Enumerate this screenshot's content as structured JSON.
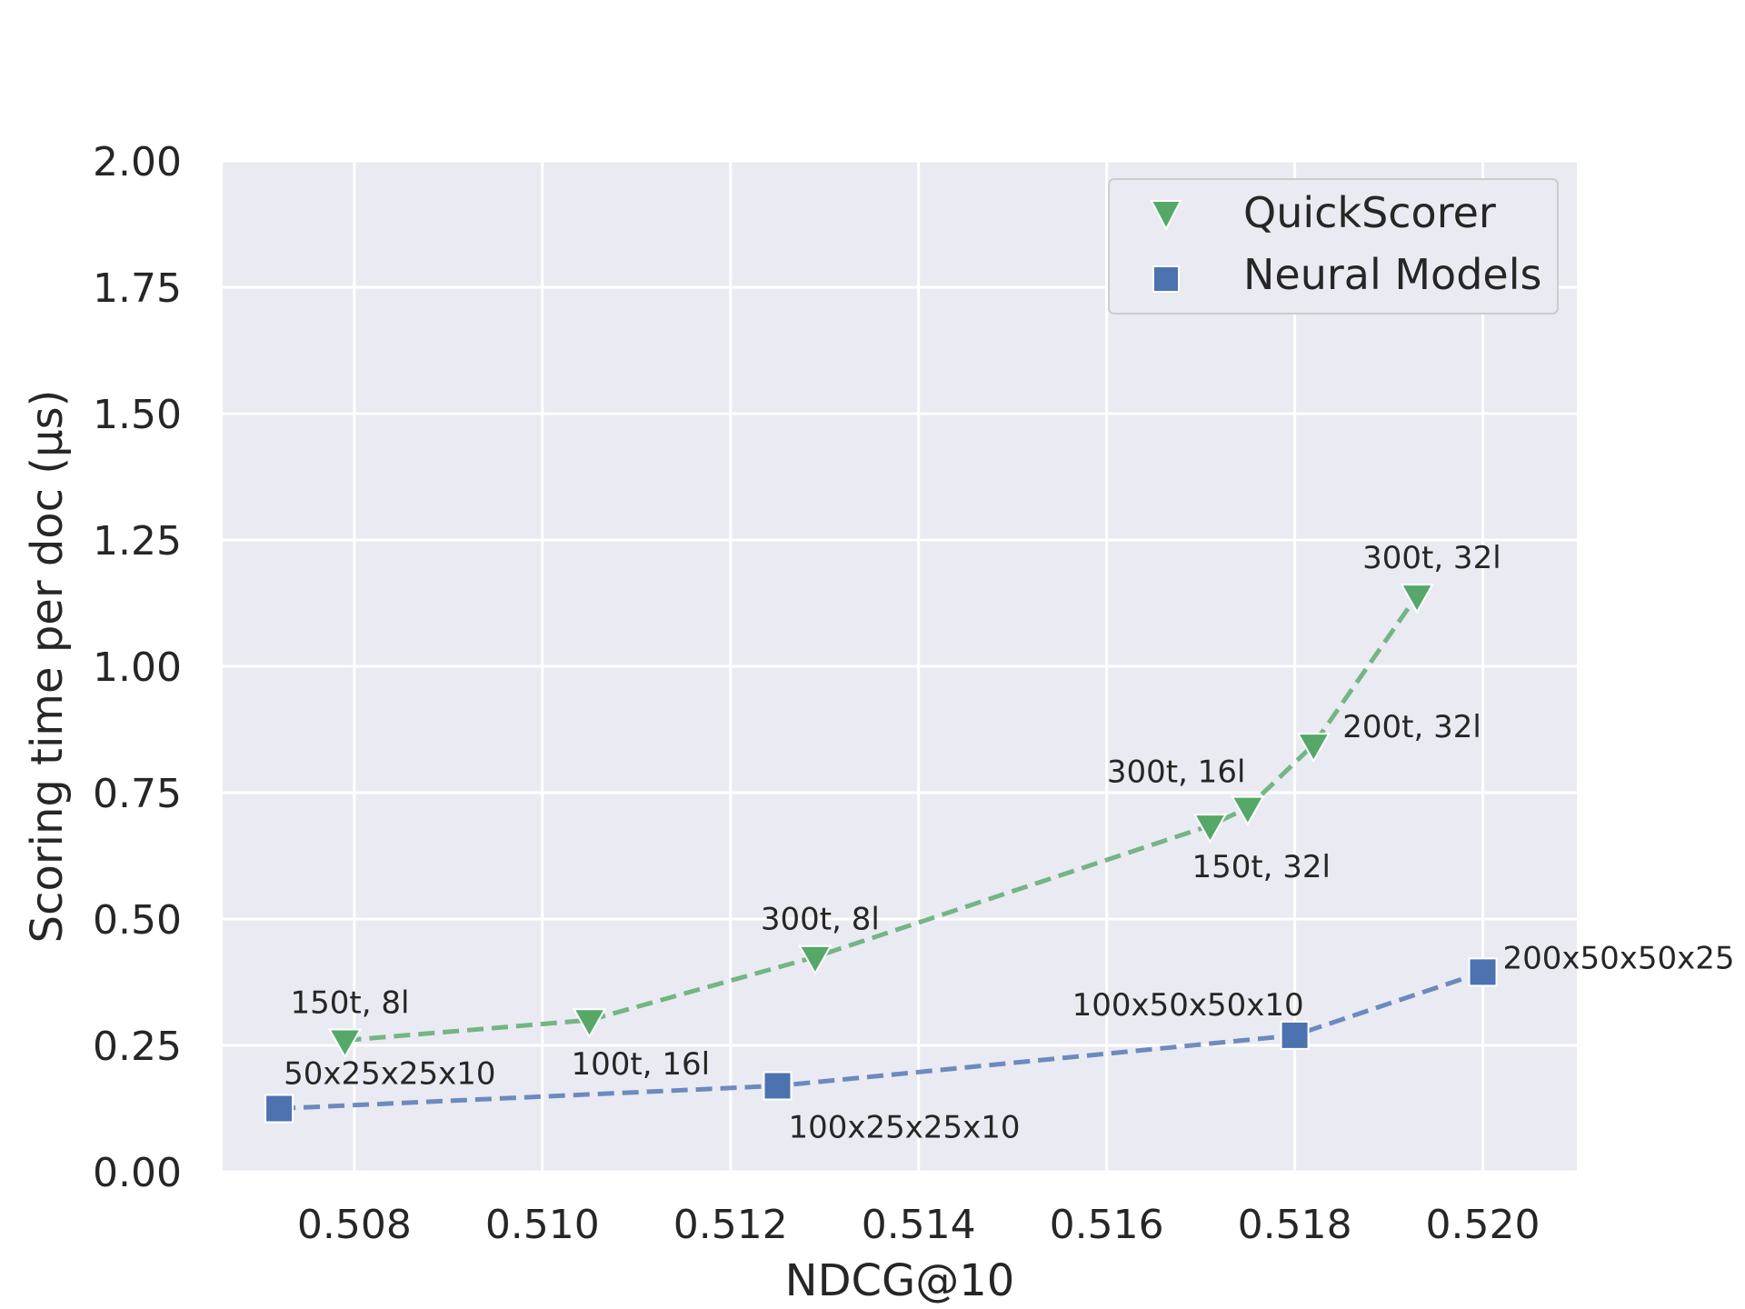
{
  "chart_data": {
    "type": "line",
    "xlabel": "NDCG@10",
    "ylabel": "Scoring time per doc (μs)",
    "xlim": [
      0.5066,
      0.521
    ],
    "ylim": [
      0,
      2.0
    ],
    "x_ticks": [
      "0.508",
      "0.510",
      "0.512",
      "0.514",
      "0.516",
      "0.518",
      "0.520"
    ],
    "y_ticks": [
      "0.00",
      "0.25",
      "0.50",
      "0.75",
      "1.00",
      "1.25",
      "1.50",
      "1.75",
      "2.00"
    ],
    "grid": true,
    "legend_position": "top-right",
    "series": [
      {
        "name": "QuickScorer",
        "marker": "triangle-down",
        "color": "#55a868",
        "points": [
          {
            "x": 0.5079,
            "y": 0.26,
            "label": "150t, 8l"
          },
          {
            "x": 0.5105,
            "y": 0.3,
            "label": "100t, 16l"
          },
          {
            "x": 0.5129,
            "y": 0.425,
            "label": "300t, 8l"
          },
          {
            "x": 0.5171,
            "y": 0.685,
            "label": "150t, 32l"
          },
          {
            "x": 0.5175,
            "y": 0.72,
            "label": "300t, 16l"
          },
          {
            "x": 0.5182,
            "y": 0.845,
            "label": "200t, 32l"
          },
          {
            "x": 0.5193,
            "y": 1.14,
            "label": "300t, 32l"
          }
        ]
      },
      {
        "name": "Neural Models",
        "marker": "square",
        "color": "#4c72b0",
        "points": [
          {
            "x": 0.5072,
            "y": 0.125,
            "label": "50x25x25x10"
          },
          {
            "x": 0.5125,
            "y": 0.17,
            "label": "100x25x25x10"
          },
          {
            "x": 0.518,
            "y": 0.27,
            "label": "100x50x50x10"
          },
          {
            "x": 0.52,
            "y": 0.395,
            "label": "200x50x50x25"
          }
        ]
      }
    ]
  }
}
